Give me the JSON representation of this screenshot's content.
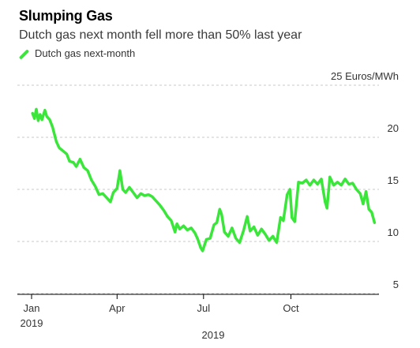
{
  "title": "Slumping Gas",
  "subtitle": "Dutch gas next month fell more than 50% last year",
  "legend_label": "Dutch gas next-month",
  "colors": {
    "series": "#39e639",
    "grid": "#c8c8c8",
    "axis": "#000000",
    "text": "#333333"
  },
  "chart_data": {
    "type": "line",
    "title": "Slumping Gas",
    "subtitle": "Dutch gas next month fell more than 50% last year",
    "ylabel": "",
    "xlabel": "2019",
    "y_unit_label": "Euros/MWh",
    "ylim": [
      5,
      25
    ],
    "yticks": [
      5,
      10,
      15,
      20,
      25
    ],
    "ytick_labels": [
      "5",
      "10",
      "15",
      "20",
      "25 Euros/MWh"
    ],
    "xlim": [
      "2019-01-01",
      "2019-12-31"
    ],
    "xticks": [
      "2019-01-01",
      "2019-04-01",
      "2019-07-01",
      "2019-10-01"
    ],
    "xtick_labels": [
      "Jan",
      "Apr",
      "Jul",
      "Oct"
    ],
    "xtick_sublabels": [
      "2019",
      "",
      "",
      ""
    ],
    "axis_caption": "2019",
    "grid": "horizontal dashed",
    "legend_position": "top-left",
    "series": [
      {
        "name": "Dutch gas next-month",
        "color": "#39e639",
        "points": [
          [
            "2019-01-02",
            22.3
          ],
          [
            "2019-01-04",
            21.8
          ],
          [
            "2019-01-06",
            22.7
          ],
          [
            "2019-01-08",
            21.6
          ],
          [
            "2019-01-10",
            22.2
          ],
          [
            "2019-01-12",
            21.7
          ],
          [
            "2019-01-15",
            22.6
          ],
          [
            "2019-01-17",
            22.0
          ],
          [
            "2019-01-20",
            21.7
          ],
          [
            "2019-01-23",
            21.0
          ],
          [
            "2019-01-27",
            19.6
          ],
          [
            "2019-01-30",
            19.0
          ],
          [
            "2019-02-03",
            18.7
          ],
          [
            "2019-02-07",
            18.4
          ],
          [
            "2019-02-10",
            17.7
          ],
          [
            "2019-02-14",
            17.6
          ],
          [
            "2019-02-17",
            17.2
          ],
          [
            "2019-02-21",
            17.9
          ],
          [
            "2019-02-25",
            17.1
          ],
          [
            "2019-03-01",
            16.8
          ],
          [
            "2019-03-05",
            15.9
          ],
          [
            "2019-03-09",
            15.3
          ],
          [
            "2019-03-13",
            14.5
          ],
          [
            "2019-03-17",
            14.6
          ],
          [
            "2019-03-21",
            14.2
          ],
          [
            "2019-03-25",
            13.8
          ],
          [
            "2019-03-28",
            14.7
          ],
          [
            "2019-04-01",
            15.1
          ],
          [
            "2019-04-04",
            16.8
          ],
          [
            "2019-04-07",
            15.0
          ],
          [
            "2019-04-10",
            14.7
          ],
          [
            "2019-04-14",
            15.2
          ],
          [
            "2019-04-18",
            14.7
          ],
          [
            "2019-04-22",
            14.2
          ],
          [
            "2019-04-26",
            14.6
          ],
          [
            "2019-04-30",
            14.4
          ],
          [
            "2019-05-04",
            14.5
          ],
          [
            "2019-05-08",
            14.3
          ],
          [
            "2019-05-12",
            13.9
          ],
          [
            "2019-05-16",
            13.5
          ],
          [
            "2019-05-20",
            13.0
          ],
          [
            "2019-05-24",
            12.4
          ],
          [
            "2019-05-28",
            12.0
          ],
          [
            "2019-06-01",
            10.9
          ],
          [
            "2019-06-03",
            11.7
          ],
          [
            "2019-06-06",
            11.2
          ],
          [
            "2019-06-10",
            11.5
          ],
          [
            "2019-06-14",
            11.1
          ],
          [
            "2019-06-18",
            11.3
          ],
          [
            "2019-06-22",
            10.8
          ],
          [
            "2019-06-25",
            10.2
          ],
          [
            "2019-06-28",
            9.4
          ],
          [
            "2019-06-30",
            9.1
          ],
          [
            "2019-07-04",
            10.2
          ],
          [
            "2019-07-08",
            10.3
          ],
          [
            "2019-07-12",
            11.6
          ],
          [
            "2019-07-15",
            11.8
          ],
          [
            "2019-07-18",
            13.1
          ],
          [
            "2019-07-20",
            12.6
          ],
          [
            "2019-07-23",
            10.9
          ],
          [
            "2019-07-27",
            10.5
          ],
          [
            "2019-07-31",
            11.3
          ],
          [
            "2019-08-04",
            10.3
          ],
          [
            "2019-08-08",
            9.9
          ],
          [
            "2019-08-12",
            11.0
          ],
          [
            "2019-08-16",
            12.4
          ],
          [
            "2019-08-19",
            11.0
          ],
          [
            "2019-08-23",
            11.4
          ],
          [
            "2019-08-27",
            10.6
          ],
          [
            "2019-08-31",
            11.2
          ],
          [
            "2019-09-04",
            10.7
          ],
          [
            "2019-09-08",
            10.1
          ],
          [
            "2019-09-12",
            10.5
          ],
          [
            "2019-09-16",
            9.9
          ],
          [
            "2019-09-20",
            12.3
          ],
          [
            "2019-09-23",
            12.0
          ],
          [
            "2019-09-27",
            14.5
          ],
          [
            "2019-09-30",
            15.0
          ],
          [
            "2019-10-02",
            12.3
          ],
          [
            "2019-10-05",
            11.9
          ],
          [
            "2019-10-09",
            15.7
          ],
          [
            "2019-10-13",
            15.6
          ],
          [
            "2019-10-17",
            15.9
          ],
          [
            "2019-10-21",
            15.4
          ],
          [
            "2019-10-25",
            15.9
          ],
          [
            "2019-10-29",
            15.5
          ],
          [
            "2019-11-02",
            16.0
          ],
          [
            "2019-11-06",
            13.8
          ],
          [
            "2019-11-08",
            13.2
          ],
          [
            "2019-11-11",
            16.2
          ],
          [
            "2019-11-15",
            15.4
          ],
          [
            "2019-11-19",
            15.7
          ],
          [
            "2019-11-23",
            15.4
          ],
          [
            "2019-11-27",
            16.0
          ],
          [
            "2019-12-01",
            15.5
          ],
          [
            "2019-12-05",
            15.6
          ],
          [
            "2019-12-09",
            15.0
          ],
          [
            "2019-12-13",
            14.6
          ],
          [
            "2019-12-16",
            13.6
          ],
          [
            "2019-12-19",
            14.8
          ],
          [
            "2019-12-22",
            13.1
          ],
          [
            "2019-12-25",
            12.8
          ],
          [
            "2019-12-28",
            11.8
          ]
        ]
      }
    ]
  }
}
